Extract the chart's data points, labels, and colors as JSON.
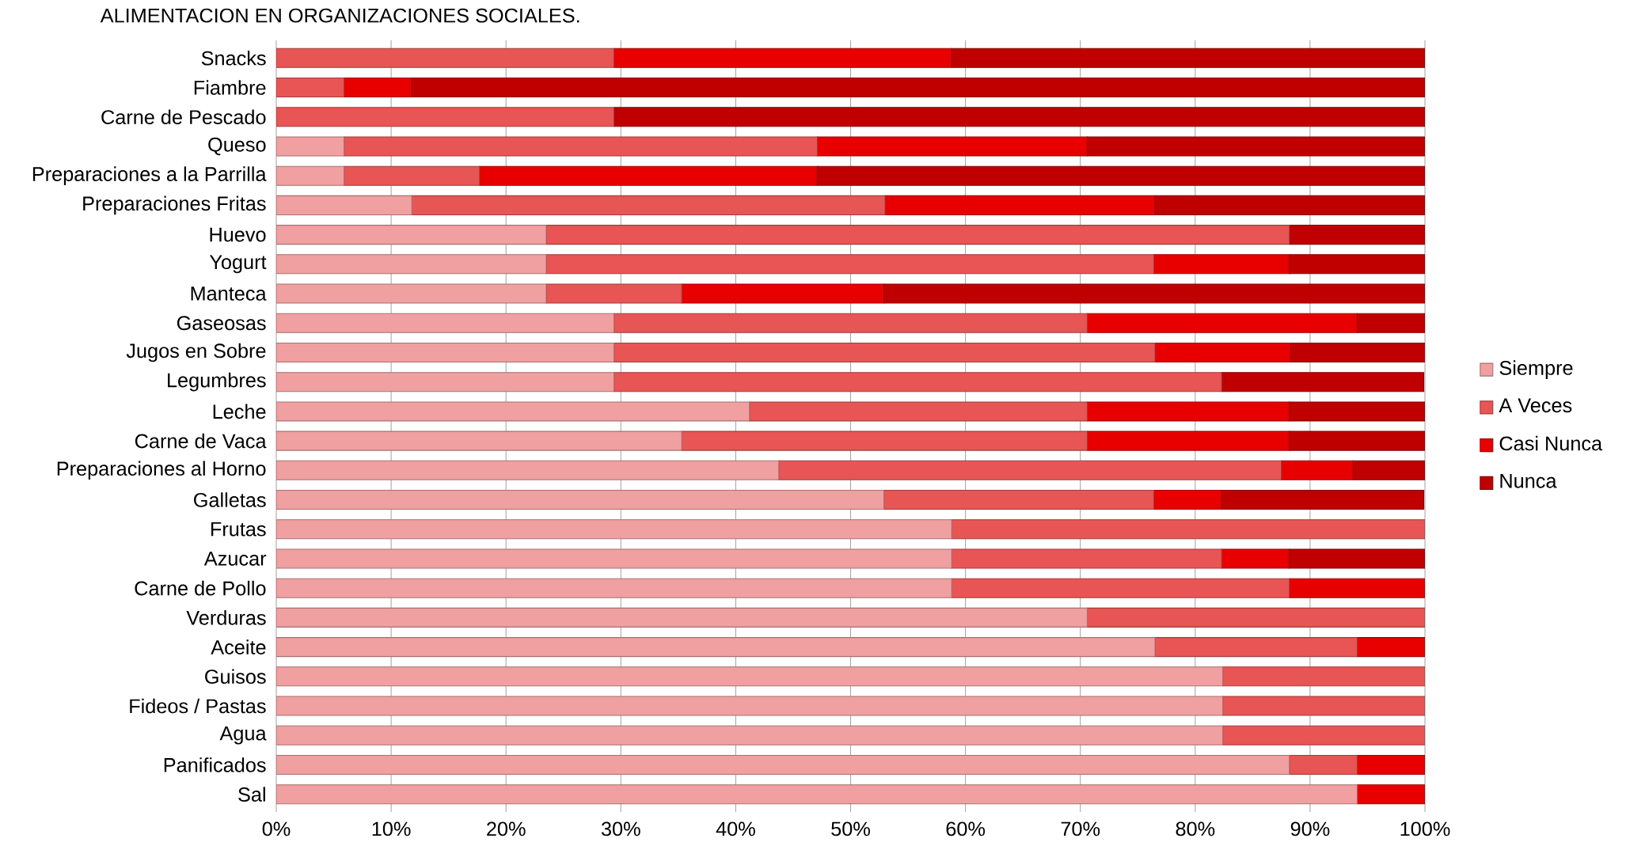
{
  "chart_data": {
    "type": "bar",
    "orientation": "horizontal",
    "stacked": true,
    "title": "ALIMENTACION EN ORGANIZACIONES SOCIALES.",
    "categories": [
      "Snacks",
      "Fiambre",
      "Carne de Pescado",
      "Queso",
      "Preparaciones a la Parrilla",
      "Preparaciones Fritas",
      "Huevo",
      "Yogurt",
      "Manteca",
      "Gaseosas",
      "Jugos en Sobre",
      "Legumbres",
      "Leche",
      "Carne de Vaca",
      "Preparaciones al Horno",
      "Galletas",
      "Frutas",
      "Azucar",
      "Carne de Pollo",
      "Verduras",
      "Aceite",
      "Guisos",
      "Fideos / Pastas",
      "Agua",
      "Panificados",
      "Sal"
    ],
    "series": [
      {
        "name": "Siempre",
        "color": "#f0a0a0",
        "values": [
          0,
          0,
          0,
          5.9,
          5.9,
          11.8,
          23.5,
          23.5,
          23.5,
          29.4,
          29.4,
          29.4,
          41.2,
          35.3,
          43.75,
          52.9,
          58.8,
          58.8,
          58.8,
          70.6,
          76.5,
          82.4,
          82.4,
          82.4,
          88.2,
          94.1
        ]
      },
      {
        "name": "A Veces",
        "color": "#e85555",
        "values": [
          29.4,
          5.9,
          29.4,
          41.2,
          11.8,
          41.2,
          64.7,
          52.9,
          11.8,
          41.2,
          47.1,
          52.9,
          29.4,
          35.3,
          43.75,
          23.5,
          41.2,
          23.5,
          29.4,
          29.4,
          17.6,
          17.6,
          17.6,
          17.6,
          5.9,
          0
        ]
      },
      {
        "name": "Casi Nunca",
        "color": "#e80000",
        "values": [
          29.4,
          5.9,
          0,
          23.5,
          29.4,
          23.5,
          0,
          11.8,
          17.6,
          23.5,
          11.8,
          0,
          17.6,
          17.6,
          6.25,
          5.9,
          0,
          5.9,
          11.8,
          0,
          5.9,
          0,
          0,
          0,
          5.9,
          5.9
        ]
      },
      {
        "name": "Nunca",
        "color": "#c00000",
        "values": [
          41.2,
          88.2,
          70.6,
          29.4,
          52.9,
          23.5,
          11.8,
          11.8,
          47.1,
          5.9,
          11.8,
          17.6,
          11.8,
          11.8,
          6.25,
          17.6,
          0,
          11.8,
          0,
          0,
          0,
          0,
          0,
          0,
          0,
          0
        ]
      }
    ],
    "xlim": [
      0,
      100
    ],
    "xticks": [
      {
        "value": 0,
        "label": "0%"
      },
      {
        "value": 10,
        "label": "10%"
      },
      {
        "value": 20,
        "label": "20%"
      },
      {
        "value": 30,
        "label": "30%"
      },
      {
        "value": 40,
        "label": "40%"
      },
      {
        "value": 50,
        "label": "50%"
      },
      {
        "value": 60,
        "label": "60%"
      },
      {
        "value": 70,
        "label": "70%"
      },
      {
        "value": 80,
        "label": "80%"
      },
      {
        "value": 90,
        "label": "90%"
      },
      {
        "value": 100,
        "label": "100%"
      }
    ],
    "grid": "x",
    "legend": "right"
  }
}
